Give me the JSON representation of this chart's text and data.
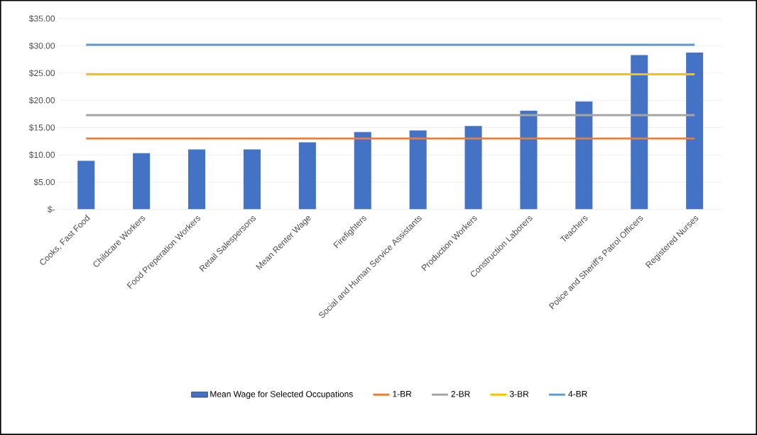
{
  "chart_data": {
    "type": "bar",
    "categories": [
      "Cooks, Fast Food",
      "Childcare Workers",
      "Food Preperation Workers",
      "Retail Salespersons",
      "Mean Renter Wage",
      "Firefighters",
      "Social and Human Service Assistants",
      "Production Workers",
      "Construction Laborers",
      "Teachers",
      "Police and Sheriff's Patrol Officers",
      "Registered Nurses"
    ],
    "series": [
      {
        "name": "Mean Wage for Selected Occupations",
        "color": "#4472c4",
        "values": [
          8.9,
          10.3,
          11.0,
          11.0,
          12.3,
          14.2,
          14.5,
          15.3,
          18.1,
          19.8,
          28.3,
          28.8
        ]
      },
      {
        "name": "1-BR",
        "type": "line",
        "color": "#ed7d31",
        "values": [
          13.0,
          13.0,
          13.0,
          13.0,
          13.0,
          13.0,
          13.0,
          13.0,
          13.0,
          13.0,
          13.0,
          13.0
        ]
      },
      {
        "name": "2-BR",
        "type": "line",
        "color": "#a5a5a5",
        "values": [
          17.3,
          17.3,
          17.3,
          17.3,
          17.3,
          17.3,
          17.3,
          17.3,
          17.3,
          17.3,
          17.3,
          17.3
        ]
      },
      {
        "name": "3-BR",
        "type": "line",
        "color": "#ffc000",
        "values": [
          24.8,
          24.8,
          24.8,
          24.8,
          24.8,
          24.8,
          24.8,
          24.8,
          24.8,
          24.8,
          24.8,
          24.8
        ]
      },
      {
        "name": "4-BR",
        "type": "line",
        "color": "#5b9bd5",
        "values": [
          30.2,
          30.2,
          30.2,
          30.2,
          30.2,
          30.2,
          30.2,
          30.2,
          30.2,
          30.2,
          30.2,
          30.2
        ]
      }
    ],
    "ylim": [
      0,
      35
    ],
    "yticks": [
      {
        "value": 0,
        "label": "$-"
      },
      {
        "value": 5,
        "label": "$5.00"
      },
      {
        "value": 10,
        "label": "$10.00"
      },
      {
        "value": 15,
        "label": "$15.00"
      },
      {
        "value": 20,
        "label": "$20.00"
      },
      {
        "value": 25,
        "label": "$25.00"
      },
      {
        "value": 30,
        "label": "$30.00"
      },
      {
        "value": 35,
        "label": "$35.00"
      }
    ],
    "grid": "y",
    "legend": "bottom"
  }
}
